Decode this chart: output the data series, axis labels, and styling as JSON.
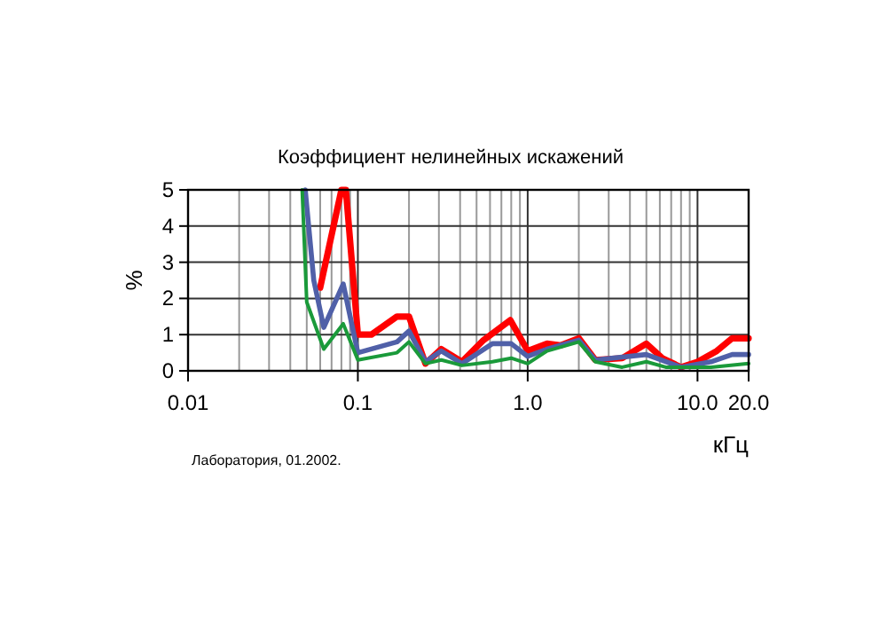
{
  "chart_data": {
    "type": "line",
    "title": "Коэффициент нелинейных искажений",
    "xlabel": "кГц",
    "ylabel": "%",
    "annotations": [
      "Лаборатория, 01.2002."
    ],
    "log": "x",
    "grid": true,
    "xlim": [
      0.01,
      20
    ],
    "ylim": [
      0,
      5
    ],
    "xticks": [
      0.01,
      {
        "value": 0.02,
        "label": null
      },
      {
        "value": 0.03,
        "label": null
      },
      {
        "value": 0.04,
        "label": null
      },
      {
        "value": 0.05,
        "label": null
      },
      {
        "value": 0.06,
        "label": null
      },
      {
        "value": 0.07,
        "label": null
      },
      {
        "value": 0.08,
        "label": null
      },
      {
        "value": 0.09,
        "label": null
      },
      0.1,
      {
        "value": 0.2,
        "label": null
      },
      {
        "value": 0.3,
        "label": null
      },
      {
        "value": 0.4,
        "label": null
      },
      {
        "value": 0.5,
        "label": null
      },
      {
        "value": 0.6,
        "label": null
      },
      {
        "value": 0.7,
        "label": null
      },
      {
        "value": 0.8,
        "label": null
      },
      {
        "value": 0.9,
        "label": null
      },
      {
        "value": 1,
        "label": "1.0"
      },
      {
        "value": 2,
        "label": null
      },
      {
        "value": 3,
        "label": null
      },
      {
        "value": 4,
        "label": null
      },
      {
        "value": 5,
        "label": null
      },
      {
        "value": 6,
        "label": null
      },
      {
        "value": 7,
        "label": null
      },
      {
        "value": 8,
        "label": null
      },
      {
        "value": 9,
        "label": null
      },
      {
        "value": 10,
        "label": "10.0"
      },
      {
        "value": 20,
        "label": "20.0"
      }
    ],
    "yticks": [
      0,
      1,
      2,
      3,
      4,
      5
    ],
    "series": [
      {
        "color": "#ff0000",
        "x": [
          0.06,
          0.08,
          0.085,
          0.1,
          0.12,
          0.17,
          0.2,
          0.25,
          0.31,
          0.41,
          0.55,
          0.79,
          1.0,
          1.3,
          1.56,
          2.0,
          2.5,
          3.6,
          5,
          6.2,
          8,
          10,
          13,
          16,
          20
        ],
        "values": [
          2.3,
          5,
          5,
          1.0,
          1.0,
          1.5,
          1.5,
          0.2,
          0.6,
          0.25,
          0.85,
          1.4,
          0.55,
          0.75,
          0.7,
          0.9,
          0.3,
          0.35,
          0.75,
          0.35,
          0.1,
          0.25,
          0.55,
          0.9,
          0.9
        ]
      },
      {
        "color": "#5060a8",
        "x": [
          0.049,
          0.055,
          0.063,
          0.082,
          0.1,
          0.17,
          0.2,
          0.25,
          0.31,
          0.41,
          0.62,
          0.8,
          1.0,
          1.3,
          2.0,
          2.5,
          5,
          8,
          12,
          16,
          20
        ],
        "values": [
          5,
          2.5,
          1.2,
          2.4,
          0.5,
          0.8,
          1.1,
          0.25,
          0.55,
          0.2,
          0.75,
          0.75,
          0.4,
          0.6,
          0.85,
          0.3,
          0.45,
          0.1,
          0.25,
          0.45,
          0.45
        ]
      },
      {
        "color": "#1a9a3a",
        "x": [
          0.047,
          0.05,
          0.063,
          0.082,
          0.1,
          0.17,
          0.2,
          0.25,
          0.31,
          0.41,
          0.62,
          0.8,
          1.0,
          1.3,
          2.0,
          2.5,
          3.6,
          5,
          6.5,
          12,
          20
        ],
        "values": [
          5,
          1.9,
          0.6,
          1.3,
          0.3,
          0.5,
          0.8,
          0.2,
          0.3,
          0.15,
          0.25,
          0.35,
          0.2,
          0.55,
          0.8,
          0.25,
          0.1,
          0.25,
          0.1,
          0.1,
          0.2
        ]
      }
    ]
  }
}
